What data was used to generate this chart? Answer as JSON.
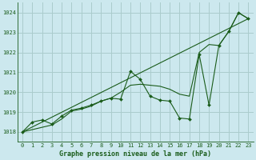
{
  "title": "Graphe pression niveau de la mer (hPa)",
  "bg_color": "#cce8ee",
  "grid_color": "#aacccc",
  "line_color": "#1a5c1a",
  "xlim": [
    -0.5,
    23.5
  ],
  "ylim": [
    1017.5,
    1024.5
  ],
  "yticks": [
    1018,
    1019,
    1020,
    1021,
    1022,
    1023,
    1024
  ],
  "xticks": [
    0,
    1,
    2,
    3,
    4,
    5,
    6,
    7,
    8,
    9,
    10,
    11,
    12,
    13,
    14,
    15,
    16,
    17,
    18,
    19,
    20,
    21,
    22,
    23
  ],
  "series1_x": [
    0,
    1,
    2,
    3,
    4,
    5,
    6,
    7,
    8,
    9,
    10,
    11,
    12,
    13,
    14,
    15,
    16,
    17,
    18,
    19,
    20,
    21,
    22,
    23
  ],
  "series1_y": [
    1018.0,
    1018.5,
    1018.6,
    1018.4,
    1018.8,
    1019.1,
    1019.2,
    1019.35,
    1019.55,
    1019.7,
    1019.65,
    1021.05,
    1020.65,
    1019.8,
    1019.6,
    1019.55,
    1018.7,
    1018.65,
    1021.9,
    1019.35,
    1022.35,
    1023.05,
    1024.0,
    1023.7
  ],
  "series2_x": [
    0,
    3,
    4,
    5,
    6,
    7,
    8,
    9,
    10,
    11,
    12,
    13,
    14,
    15,
    16,
    17,
    18,
    19,
    20,
    21,
    22,
    23
  ],
  "series2_y": [
    1018.0,
    1018.35,
    1018.65,
    1019.05,
    1019.15,
    1019.3,
    1019.55,
    1019.7,
    1020.0,
    1020.35,
    1020.4,
    1020.35,
    1020.3,
    1020.15,
    1019.9,
    1019.8,
    1022.0,
    1022.4,
    1022.35,
    1023.05,
    1024.0,
    1023.7
  ],
  "series3_x": [
    0,
    23
  ],
  "series3_y": [
    1018.0,
    1023.7
  ],
  "title_fontsize": 6.0,
  "tick_fontsize": 5.0
}
